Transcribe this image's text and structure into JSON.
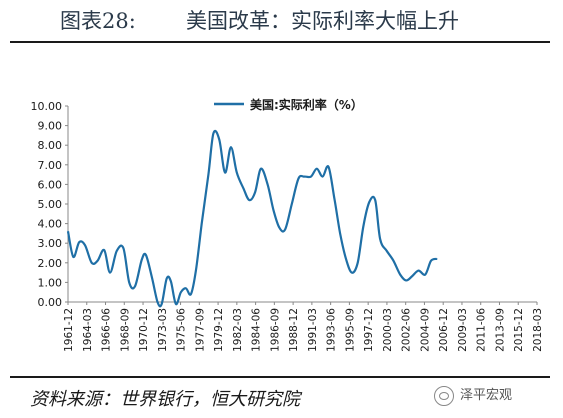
{
  "header": {
    "fig_label": "图表28:",
    "title": "美国改革：实际利率大幅上升"
  },
  "footer": {
    "source": "资料来源：世界银行，恒大研究院",
    "watermark": "泽平宏观"
  },
  "chart_data": {
    "type": "line",
    "legend": "美国:实际利率（%）",
    "legend_position": "top",
    "ylim": [
      0,
      10
    ],
    "yticks": [
      "0.00",
      "1.00",
      "2.00",
      "3.00",
      "4.00",
      "5.00",
      "6.00",
      "7.00",
      "8.00",
      "9.00",
      "10.00"
    ],
    "xticks": [
      "1961-12",
      "1964-03",
      "1966-06",
      "1968-09",
      "1970-12",
      "1973-03",
      "1975-06",
      "1977-09",
      "1979-12",
      "1982-03",
      "1984-06",
      "1986-09",
      "1988-12",
      "1991-03",
      "1993-06",
      "1995-09",
      "1997-12",
      "2000-03",
      "2002-06",
      "2004-09",
      "2006-12",
      "2009-03",
      "2011-06",
      "2013-09",
      "2015-12",
      "2018-03"
    ],
    "grid": false,
    "color": "#1f6fa6",
    "series": [
      {
        "name": "美国:实际利率（%）",
        "values": [
          [
            1961.96,
            3.6
          ],
          [
            1962.6,
            2.3
          ],
          [
            1963.3,
            3.05
          ],
          [
            1964.0,
            2.9
          ],
          [
            1964.8,
            2.0
          ],
          [
            1965.5,
            2.1
          ],
          [
            1966.3,
            2.65
          ],
          [
            1967.0,
            1.5
          ],
          [
            1967.8,
            2.6
          ],
          [
            1968.6,
            2.75
          ],
          [
            1969.3,
            1.0
          ],
          [
            1970.0,
            0.8
          ],
          [
            1970.8,
            2.15
          ],
          [
            1971.3,
            2.4
          ],
          [
            1972.0,
            1.3
          ],
          [
            1972.7,
            0.0
          ],
          [
            1973.2,
            -0.1
          ],
          [
            1973.8,
            1.2
          ],
          [
            1974.3,
            1.05
          ],
          [
            1974.9,
            -0.1
          ],
          [
            1975.5,
            0.5
          ],
          [
            1976.1,
            0.7
          ],
          [
            1976.7,
            0.4
          ],
          [
            1977.3,
            1.6
          ],
          [
            1978.0,
            4.0
          ],
          [
            1978.8,
            6.5
          ],
          [
            1979.4,
            8.6
          ],
          [
            1980.1,
            8.3
          ],
          [
            1980.8,
            6.6
          ],
          [
            1981.5,
            7.9
          ],
          [
            1982.2,
            6.6
          ],
          [
            1983.0,
            5.8
          ],
          [
            1983.7,
            5.2
          ],
          [
            1984.4,
            5.6
          ],
          [
            1985.1,
            6.8
          ],
          [
            1985.9,
            6.0
          ],
          [
            1986.6,
            4.7
          ],
          [
            1987.3,
            3.8
          ],
          [
            1988.0,
            3.7
          ],
          [
            1988.8,
            5.0
          ],
          [
            1989.6,
            6.3
          ],
          [
            1990.3,
            6.4
          ],
          [
            1991.1,
            6.4
          ],
          [
            1991.8,
            6.8
          ],
          [
            1992.5,
            6.4
          ],
          [
            1993.2,
            6.9
          ],
          [
            1993.9,
            5.3
          ],
          [
            1994.6,
            3.5
          ],
          [
            1995.3,
            2.2
          ],
          [
            1996.0,
            1.5
          ],
          [
            1996.7,
            2.0
          ],
          [
            1997.4,
            3.9
          ],
          [
            1998.1,
            5.1
          ],
          [
            1998.8,
            5.2
          ],
          [
            1999.4,
            3.2
          ],
          [
            2000.2,
            2.6
          ],
          [
            2001.0,
            2.1
          ],
          [
            2001.8,
            1.4
          ],
          [
            2002.5,
            1.1
          ],
          [
            2003.2,
            1.3
          ],
          [
            2004.0,
            1.6
          ],
          [
            2004.8,
            1.4
          ],
          [
            2005.5,
            2.1
          ],
          [
            2006.2,
            2.2
          ]
        ]
      }
    ]
  }
}
